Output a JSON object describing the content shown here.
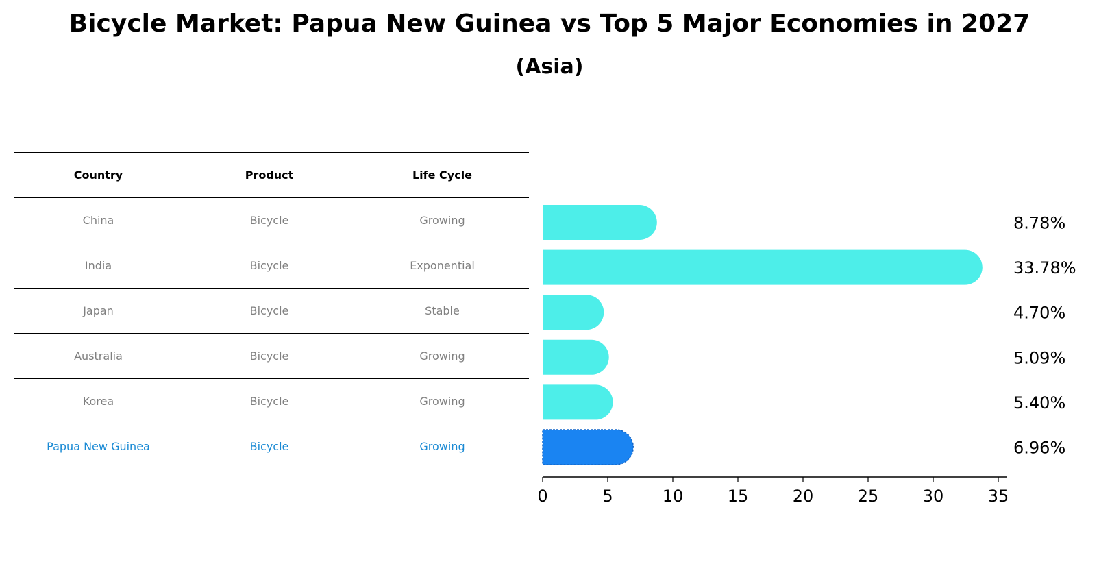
{
  "title": "Bicycle Market: Papua New Guinea vs Top 5 Major Economies in 2027",
  "subtitle": "(Asia)",
  "table": {
    "headers": [
      "Country",
      "Product",
      "Life Cycle"
    ],
    "rows": [
      [
        "China",
        "Bicycle",
        "Growing"
      ],
      [
        "India",
        "Bicycle",
        "Exponential"
      ],
      [
        "Japan",
        "Bicycle",
        "Stable"
      ],
      [
        "Australia",
        "Bicycle",
        "Growing"
      ],
      [
        "Korea",
        "Bicycle",
        "Growing"
      ],
      [
        "Papua New Guinea",
        "Bicycle",
        "Growing"
      ]
    ]
  },
  "colors": {
    "bar": "#4deee9",
    "highlight_bar": "#1a84f2",
    "highlight_text": "#1a8ad4",
    "row_text": "#808080"
  },
  "chart_data": {
    "type": "bar",
    "orientation": "horizontal",
    "categories": [
      "China",
      "India",
      "Japan",
      "Australia",
      "Korea",
      "Papua New Guinea"
    ],
    "values": [
      8.78,
      33.78,
      4.7,
      5.09,
      5.4,
      6.96
    ],
    "value_labels": [
      "8.78%",
      "33.78%",
      "4.70%",
      "5.09%",
      "5.40%",
      "6.96%"
    ],
    "highlight": "Papua New Guinea",
    "xlim": [
      0,
      35
    ],
    "xticks": [
      0,
      5,
      10,
      15,
      20,
      25,
      30,
      35
    ],
    "xlabel": "",
    "ylabel": "",
    "grid": false
  }
}
